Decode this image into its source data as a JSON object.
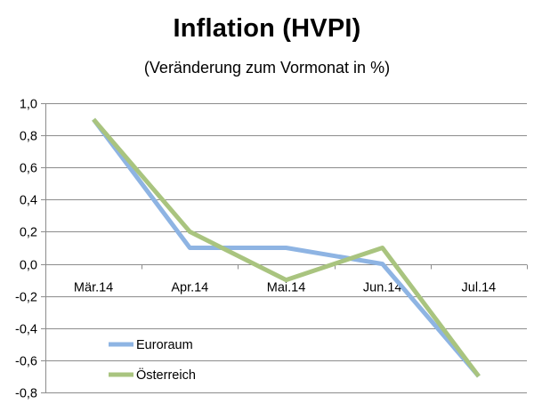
{
  "chart_data": {
    "type": "line",
    "title": "Inflation (HVPI)",
    "subtitle": "(Veränderung zum Vormonat in %)",
    "categories": [
      "Mär.14",
      "Apr.14",
      "Mai.14",
      "Jun.14",
      "Jul.14"
    ],
    "series": [
      {
        "name": "Euroraum",
        "values": [
          0.9,
          0.1,
          0.1,
          0.0,
          -0.7
        ],
        "color": "#8EB4E3"
      },
      {
        "name": "Österreich",
        "values": [
          0.9,
          0.2,
          -0.1,
          0.1,
          -0.7
        ],
        "color": "#A9C47F"
      }
    ],
    "ylim": [
      -0.8,
      1.0
    ],
    "ytick_step": 0.2,
    "ytick_labels": [
      "-0,8",
      "-0,6",
      "-0,4",
      "-0,2",
      "0,0",
      "0,2",
      "0,4",
      "0,6",
      "0,8",
      "1,0"
    ],
    "grid": true,
    "legend_position": "bottom-left",
    "xlabel": "",
    "ylabel": ""
  }
}
